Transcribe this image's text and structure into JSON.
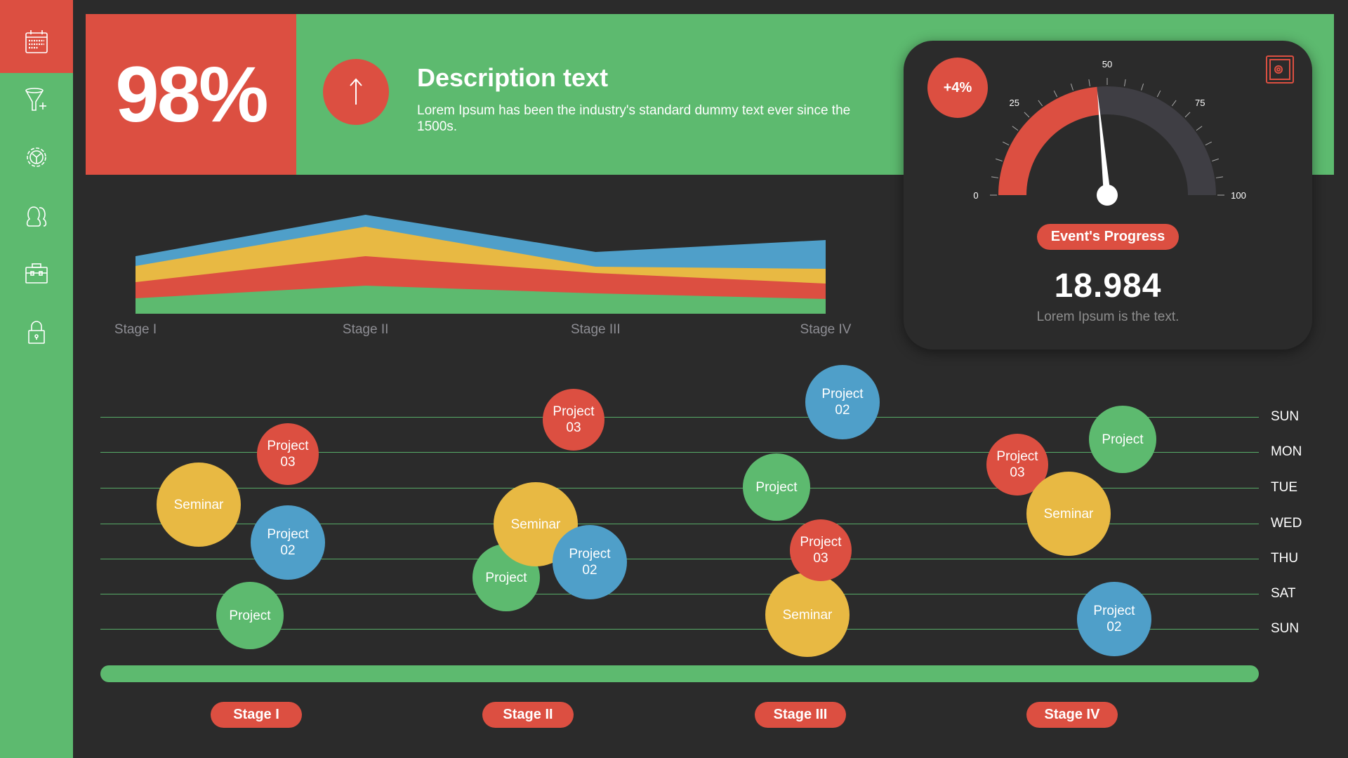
{
  "colors": {
    "red": "#dc4f41",
    "green": "#5dba6f",
    "blue": "#4f9fc9",
    "yellow": "#e8b943",
    "background": "#2b2b2b",
    "gauge_track": "#3f3e44"
  },
  "sidebar": {
    "items": [
      {
        "icon": "calendar-icon",
        "active": true
      },
      {
        "icon": "funnel-add-icon"
      },
      {
        "icon": "gear-icon"
      },
      {
        "icon": "users-icon"
      },
      {
        "icon": "toolbox-icon"
      },
      {
        "icon": "lock-icon"
      }
    ]
  },
  "banner": {
    "percent": "98%",
    "arrow_icon": "arrow-up-icon",
    "title": "Description text",
    "body": "Lorem Ipsum has been the industry's standard dummy text ever since the 1500s."
  },
  "gauge_card": {
    "delta": "+4%",
    "safe_icon": "safe-icon",
    "scale": {
      "min": 0,
      "max": 100,
      "labels": [
        "0",
        "25",
        "50",
        "75",
        "100"
      ]
    },
    "value": 47,
    "pill": "Event's Progress",
    "number": "18.984",
    "caption": "Lorem Ipsum is the text."
  },
  "chart_data": {
    "type": "area",
    "stacked": true,
    "categories": [
      "Stage I",
      "Stage II",
      "Stage III",
      "Stage IV"
    ],
    "series": [
      {
        "color": "#5dba6f",
        "values": [
          22,
          40,
          29,
          21
        ]
      },
      {
        "color": "#dc4f41",
        "values": [
          23,
          42,
          29,
          22
        ]
      },
      {
        "color": "#e8b943",
        "values": [
          23,
          42,
          9,
          21
        ]
      },
      {
        "color": "#4f9fc9",
        "values": [
          14,
          17,
          21,
          41
        ]
      }
    ],
    "ylim": [
      0,
      145
    ]
  },
  "schedule": {
    "days": [
      "SUN",
      "MON",
      "TUE",
      "WED",
      "THU",
      "SAT",
      "SUN"
    ],
    "events": [
      {
        "label": "Project",
        "color": "green",
        "day": "SAT",
        "stage": "Stage I"
      },
      {
        "label": "Seminar",
        "color": "yellow",
        "day": "TUE",
        "stage": "Stage I"
      },
      {
        "label": "Project\n02",
        "color": "blue",
        "day": "WED",
        "stage": "Stage I"
      },
      {
        "label": "Project\n03",
        "color": "red",
        "day": "MON",
        "stage": "Stage I"
      },
      {
        "label": "Project",
        "color": "green",
        "day": "THU",
        "stage": "Stage II"
      },
      {
        "label": "Seminar",
        "color": "yellow",
        "day": "WED",
        "stage": "Stage II"
      },
      {
        "label": "Project\n02",
        "color": "blue",
        "day": "THU",
        "stage": "Stage II"
      },
      {
        "label": "Project\n03",
        "color": "red",
        "day": "SUN",
        "stage": "Stage II"
      },
      {
        "label": "Project\n02",
        "color": "blue",
        "day": "SUN",
        "stage": "Stage III"
      },
      {
        "label": "Project",
        "color": "green",
        "day": "TUE",
        "stage": "Stage III"
      },
      {
        "label": "Seminar",
        "color": "yellow",
        "day": "SAT",
        "stage": "Stage III"
      },
      {
        "label": "Project\n03",
        "color": "red",
        "day": "THU",
        "stage": "Stage III"
      },
      {
        "label": "Project\n03",
        "color": "red",
        "day": "MON",
        "stage": "Stage IV"
      },
      {
        "label": "Project",
        "color": "green",
        "day": "MON",
        "stage": "Stage IV"
      },
      {
        "label": "Seminar",
        "color": "yellow",
        "day": "WED",
        "stage": "Stage IV"
      },
      {
        "label": "Project\n02",
        "color": "blue",
        "day": "SUN",
        "stage": "Stage IV"
      }
    ],
    "stages": [
      "Stage I",
      "Stage II",
      "Stage III",
      "Stage IV"
    ]
  }
}
